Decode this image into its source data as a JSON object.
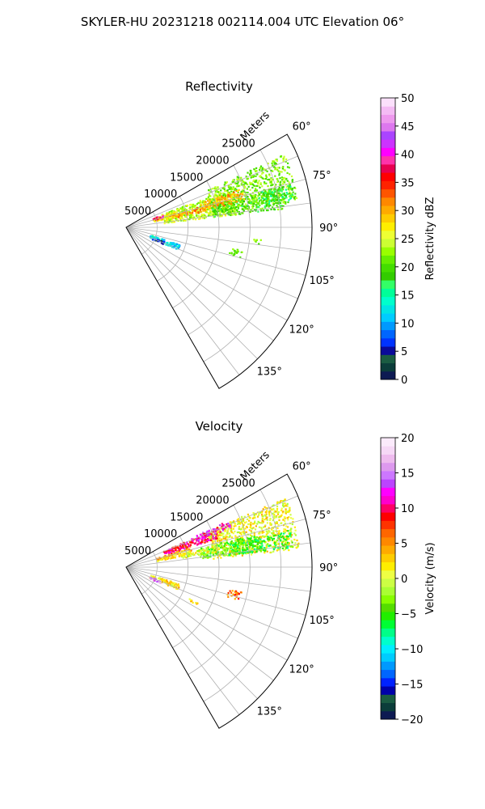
{
  "figure": {
    "suptitle": "SKYLER-HU  20231218  002114.004 UTC Elevation 06°"
  },
  "chart_data": [
    {
      "type": "heatmap",
      "title": "Reflectivity",
      "radial_label": "Meters",
      "radial_ticks": [
        5000,
        10000,
        15000,
        20000,
        25000
      ],
      "radial_tick_labels": [
        "5000",
        "10000",
        "15000",
        "20000",
        "25000"
      ],
      "radial_max": 30000,
      "azimuth_range": [
        60,
        150
      ],
      "azimuth_gridlines": [
        60,
        67.5,
        75,
        82.5,
        90,
        97.5,
        105,
        112.5,
        120,
        127.5,
        135,
        142.5
      ],
      "azimuth_ticks": [
        60,
        75,
        90,
        105,
        120,
        135
      ],
      "azimuth_tick_labels": [
        "60°",
        "75°",
        "90°",
        "105°",
        "120°",
        "135°"
      ],
      "colorbar": {
        "label": "Reflectivity dBZ",
        "range": [
          0,
          50
        ],
        "ticks": [
          0,
          5,
          10,
          15,
          20,
          25,
          30,
          35,
          40,
          45,
          50
        ],
        "tick_labels": [
          "0",
          "5",
          "10",
          "15",
          "20",
          "25",
          "30",
          "35",
          "40",
          "45",
          "50"
        ],
        "colors": [
          "#0d1a52",
          "#0b3d3a",
          "#1a5c42",
          "#0a0a99",
          "#0033ff",
          "#0066ff",
          "#0099ff",
          "#00ccff",
          "#00e5e5",
          "#00ffcc",
          "#00ff99",
          "#33ff66",
          "#33cc00",
          "#44dd00",
          "#66ee00",
          "#99ff00",
          "#ccff33",
          "#eeff33",
          "#ffee00",
          "#ffcc00",
          "#ffaa00",
          "#ff8800",
          "#ff5500",
          "#ff2200",
          "#ff0000",
          "#e80050",
          "#ff33aa",
          "#ff00ff",
          "#cc33ff",
          "#aa44ff",
          "#dd77ee",
          "#ee99ee",
          "#f4bbf4",
          "#fbe0fb"
        ]
      },
      "echo_blobs": [
        {
          "az": 76,
          "r": 12000,
          "daz": 7,
          "dr": 6000,
          "value": 24
        },
        {
          "az": 73,
          "r": 21000,
          "daz": 8,
          "dr": 7000,
          "value": 22
        },
        {
          "az": 79,
          "r": 20000,
          "daz": 4,
          "dr": 6000,
          "value": 20
        },
        {
          "az": 74,
          "r": 16000,
          "daz": 3,
          "dr": 3500,
          "value": 30
        },
        {
          "az": 76,
          "r": 10000,
          "daz": 2,
          "dr": 3000,
          "value": 31
        },
        {
          "az": 74,
          "r": 6500,
          "daz": 3,
          "dr": 2000,
          "value": 28
        },
        {
          "az": 72,
          "r": 5500,
          "daz": 2,
          "dr": 1000,
          "value": 38
        },
        {
          "az": 78,
          "r": 25000,
          "daz": 3,
          "dr": 2500,
          "value": 18
        },
        {
          "az": 103,
          "r": 18000,
          "daz": 2,
          "dr": 1000,
          "value": 21
        },
        {
          "az": 110,
          "r": 6500,
          "daz": 3,
          "dr": 2500,
          "value": 12
        },
        {
          "az": 112,
          "r": 5500,
          "daz": 2,
          "dr": 1000,
          "value": 5
        },
        {
          "az": 96,
          "r": 21000,
          "daz": 1,
          "dr": 800,
          "value": 22
        }
      ]
    },
    {
      "type": "heatmap",
      "title": "Velocity",
      "radial_label": "Meters",
      "radial_ticks": [
        5000,
        10000,
        15000,
        20000,
        25000
      ],
      "radial_tick_labels": [
        "5000",
        "10000",
        "15000",
        "20000",
        "25000"
      ],
      "radial_max": 30000,
      "azimuth_range": [
        60,
        150
      ],
      "azimuth_gridlines": [
        60,
        67.5,
        75,
        82.5,
        90,
        97.5,
        105,
        112.5,
        120,
        127.5,
        135,
        142.5
      ],
      "azimuth_ticks": [
        60,
        75,
        90,
        105,
        120,
        135
      ],
      "azimuth_tick_labels": [
        "60°",
        "75°",
        "90°",
        "105°",
        "120°",
        "135°"
      ],
      "colorbar": {
        "label": "Velocity (m/s)",
        "range": [
          -20,
          20
        ],
        "ticks": [
          -20,
          -15,
          -10,
          -5,
          0,
          5,
          10,
          15,
          20
        ],
        "tick_labels": [
          "−20",
          "−15",
          "−10",
          "−5",
          "0",
          "5",
          "10",
          "15",
          "20"
        ],
        "colors": [
          "#0d1a52",
          "#0b3d3a",
          "#1a5c42",
          "#0000aa",
          "#0022ff",
          "#0066ff",
          "#0099ff",
          "#00ccff",
          "#00eeff",
          "#00ffcc",
          "#00ff88",
          "#00ff33",
          "#22ee00",
          "#55dd00",
          "#88ff00",
          "#aaff33",
          "#ccff44",
          "#eeff44",
          "#ffee00",
          "#ffcc00",
          "#ffaa00",
          "#ff8800",
          "#ff6600",
          "#ff3300",
          "#ff0000",
          "#ff0066",
          "#ff00cc",
          "#ff00ff",
          "#bb44ff",
          "#cc77ff",
          "#dd99ee",
          "#eebbee",
          "#f6d8f6",
          "#fbeafb"
        ]
      },
      "echo_blobs": [
        {
          "az": 75,
          "r": 21000,
          "daz": 9,
          "dr": 7000,
          "value": 1
        },
        {
          "az": 79,
          "r": 17000,
          "daz": 4,
          "dr": 5000,
          "value": -4
        },
        {
          "az": 80,
          "r": 22000,
          "daz": 3,
          "dr": 5000,
          "value": -5
        },
        {
          "az": 69,
          "r": 11000,
          "daz": 3,
          "dr": 4500,
          "value": 10
        },
        {
          "az": 67,
          "r": 15000,
          "daz": 2,
          "dr": 3000,
          "value": 12
        },
        {
          "az": 75,
          "r": 8000,
          "daz": 3,
          "dr": 3000,
          "value": 3
        },
        {
          "az": 78,
          "r": 12000,
          "daz": 2,
          "dr": 3000,
          "value": 0
        },
        {
          "az": 110,
          "r": 6500,
          "daz": 3,
          "dr": 2500,
          "value": 2
        },
        {
          "az": 113,
          "r": 5000,
          "daz": 2,
          "dr": 1000,
          "value": 15
        },
        {
          "az": 104,
          "r": 18000,
          "daz": 2,
          "dr": 1200,
          "value": 6
        },
        {
          "az": 117,
          "r": 12000,
          "daz": 1,
          "dr": 800,
          "value": 3
        }
      ]
    }
  ]
}
